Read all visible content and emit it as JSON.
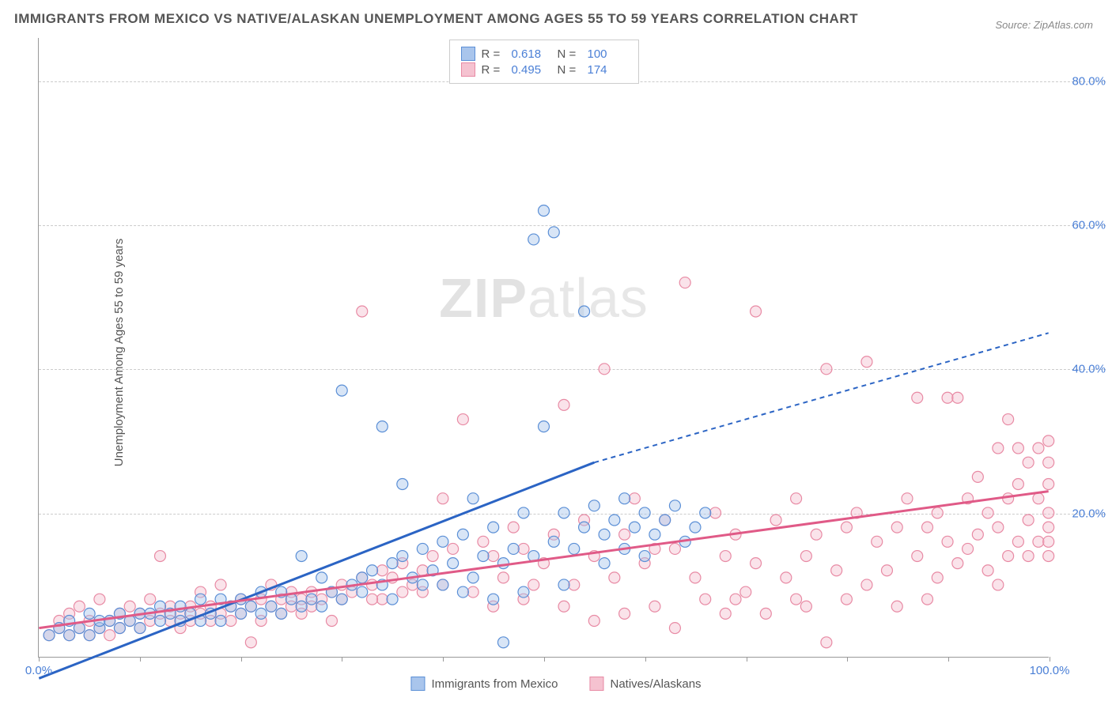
{
  "title": "IMMIGRANTS FROM MEXICO VS NATIVE/ALASKAN UNEMPLOYMENT AMONG AGES 55 TO 59 YEARS CORRELATION CHART",
  "source": "Source: ZipAtlas.com",
  "y_axis_label": "Unemployment Among Ages 55 to 59 years",
  "watermark": {
    "prefix": "ZIP",
    "suffix": "atlas"
  },
  "chart": {
    "type": "scatter",
    "background_color": "#ffffff",
    "grid_color": "#cccccc",
    "axis_color": "#999999",
    "xlim": [
      0,
      100
    ],
    "ylim": [
      0,
      86
    ],
    "xtick_labels": {
      "0": "0.0%",
      "100": "100.0%"
    },
    "xtick_positions": [
      0,
      10,
      20,
      30,
      40,
      50,
      60,
      70,
      80,
      90,
      100
    ],
    "ytick_labels": {
      "20": "20.0%",
      "40": "40.0%",
      "60": "60.0%",
      "80": "80.0%"
    },
    "ygrid_positions": [
      20,
      40,
      60,
      80
    ],
    "marker_radius": 7,
    "marker_opacity": 0.45,
    "marker_stroke_width": 1.2,
    "series": [
      {
        "name": "Immigrants from Mexico",
        "fill_color": "#a9c5ec",
        "stroke_color": "#5b8fd6",
        "line_color": "#2b64c4",
        "line_width": 3,
        "R": "0.618",
        "N": "100",
        "trend": {
          "x1": 0,
          "y1": -3,
          "x2": 55,
          "y2": 27,
          "x3": 100,
          "y3": 45
        },
        "points": [
          [
            1,
            3
          ],
          [
            2,
            4
          ],
          [
            3,
            3
          ],
          [
            3,
            5
          ],
          [
            4,
            4
          ],
          [
            5,
            3
          ],
          [
            5,
            6
          ],
          [
            6,
            4
          ],
          [
            6,
            5
          ],
          [
            7,
            5
          ],
          [
            8,
            4
          ],
          [
            8,
            6
          ],
          [
            9,
            5
          ],
          [
            10,
            4
          ],
          [
            10,
            6
          ],
          [
            11,
            6
          ],
          [
            12,
            5
          ],
          [
            12,
            7
          ],
          [
            13,
            6
          ],
          [
            14,
            5
          ],
          [
            14,
            7
          ],
          [
            15,
            6
          ],
          [
            16,
            5
          ],
          [
            16,
            8
          ],
          [
            17,
            6
          ],
          [
            18,
            5
          ],
          [
            18,
            8
          ],
          [
            19,
            7
          ],
          [
            20,
            6
          ],
          [
            20,
            8
          ],
          [
            21,
            7
          ],
          [
            22,
            6
          ],
          [
            22,
            9
          ],
          [
            23,
            7
          ],
          [
            24,
            6
          ],
          [
            24,
            9
          ],
          [
            25,
            8
          ],
          [
            26,
            7
          ],
          [
            26,
            14
          ],
          [
            27,
            8
          ],
          [
            28,
            7
          ],
          [
            28,
            11
          ],
          [
            29,
            9
          ],
          [
            30,
            8
          ],
          [
            30,
            37
          ],
          [
            31,
            10
          ],
          [
            32,
            11
          ],
          [
            32,
            9
          ],
          [
            33,
            12
          ],
          [
            34,
            32
          ],
          [
            34,
            10
          ],
          [
            35,
            13
          ],
          [
            35,
            8
          ],
          [
            36,
            14
          ],
          [
            36,
            24
          ],
          [
            37,
            11
          ],
          [
            38,
            15
          ],
          [
            38,
            10
          ],
          [
            39,
            12
          ],
          [
            40,
            16
          ],
          [
            40,
            10
          ],
          [
            41,
            13
          ],
          [
            42,
            17
          ],
          [
            42,
            9
          ],
          [
            43,
            22
          ],
          [
            43,
            11
          ],
          [
            44,
            14
          ],
          [
            45,
            18
          ],
          [
            45,
            8
          ],
          [
            46,
            13
          ],
          [
            46,
            2
          ],
          [
            47,
            15
          ],
          [
            48,
            20
          ],
          [
            48,
            9
          ],
          [
            49,
            14
          ],
          [
            49,
            58
          ],
          [
            50,
            62
          ],
          [
            50,
            32
          ],
          [
            51,
            16
          ],
          [
            51,
            59
          ],
          [
            52,
            20
          ],
          [
            52,
            10
          ],
          [
            53,
            15
          ],
          [
            54,
            18
          ],
          [
            54,
            48
          ],
          [
            55,
            21
          ],
          [
            56,
            13
          ],
          [
            56,
            17
          ],
          [
            57,
            19
          ],
          [
            58,
            15
          ],
          [
            58,
            22
          ],
          [
            59,
            18
          ],
          [
            60,
            20
          ],
          [
            60,
            14
          ],
          [
            61,
            17
          ],
          [
            62,
            19
          ],
          [
            63,
            21
          ],
          [
            64,
            16
          ],
          [
            65,
            18
          ],
          [
            66,
            20
          ]
        ]
      },
      {
        "name": "Natives/Alaskans",
        "fill_color": "#f5c2d0",
        "stroke_color": "#e88aa4",
        "line_color": "#e05a87",
        "line_width": 3,
        "R": "0.495",
        "N": "174",
        "trend": {
          "x1": 0,
          "y1": 4,
          "x2": 100,
          "y2": 23
        },
        "points": [
          [
            1,
            3
          ],
          [
            2,
            4
          ],
          [
            2,
            5
          ],
          [
            3,
            3
          ],
          [
            3,
            6
          ],
          [
            4,
            4
          ],
          [
            4,
            7
          ],
          [
            5,
            5
          ],
          [
            5,
            3
          ],
          [
            6,
            4
          ],
          [
            6,
            8
          ],
          [
            7,
            5
          ],
          [
            7,
            3
          ],
          [
            8,
            6
          ],
          [
            8,
            4
          ],
          [
            9,
            5
          ],
          [
            9,
            7
          ],
          [
            10,
            6
          ],
          [
            10,
            4
          ],
          [
            11,
            5
          ],
          [
            11,
            8
          ],
          [
            12,
            6
          ],
          [
            12,
            14
          ],
          [
            13,
            5
          ],
          [
            13,
            7
          ],
          [
            14,
            6
          ],
          [
            14,
            4
          ],
          [
            15,
            7
          ],
          [
            15,
            5
          ],
          [
            16,
            6
          ],
          [
            16,
            9
          ],
          [
            17,
            7
          ],
          [
            17,
            5
          ],
          [
            18,
            6
          ],
          [
            18,
            10
          ],
          [
            19,
            7
          ],
          [
            19,
            5
          ],
          [
            20,
            8
          ],
          [
            20,
            6
          ],
          [
            21,
            7
          ],
          [
            21,
            2
          ],
          [
            22,
            8
          ],
          [
            22,
            5
          ],
          [
            23,
            7
          ],
          [
            23,
            10
          ],
          [
            24,
            8
          ],
          [
            24,
            6
          ],
          [
            25,
            9
          ],
          [
            25,
            7
          ],
          [
            26,
            8
          ],
          [
            27,
            9
          ],
          [
            27,
            7
          ],
          [
            28,
            8
          ],
          [
            29,
            9
          ],
          [
            29,
            5
          ],
          [
            30,
            10
          ],
          [
            30,
            8
          ],
          [
            31,
            9
          ],
          [
            32,
            11
          ],
          [
            32,
            48
          ],
          [
            33,
            10
          ],
          [
            34,
            12
          ],
          [
            34,
            8
          ],
          [
            35,
            11
          ],
          [
            36,
            13
          ],
          [
            37,
            10
          ],
          [
            38,
            9
          ],
          [
            39,
            14
          ],
          [
            40,
            22
          ],
          [
            40,
            10
          ],
          [
            41,
            15
          ],
          [
            42,
            33
          ],
          [
            43,
            9
          ],
          [
            44,
            16
          ],
          [
            45,
            14
          ],
          [
            45,
            7
          ],
          [
            46,
            11
          ],
          [
            47,
            18
          ],
          [
            48,
            15
          ],
          [
            49,
            10
          ],
          [
            50,
            13
          ],
          [
            51,
            17
          ],
          [
            52,
            35
          ],
          [
            52,
            7
          ],
          [
            53,
            10
          ],
          [
            54,
            19
          ],
          [
            55,
            5
          ],
          [
            55,
            14
          ],
          [
            56,
            40
          ],
          [
            57,
            11
          ],
          [
            58,
            17
          ],
          [
            58,
            6
          ],
          [
            59,
            22
          ],
          [
            60,
            13
          ],
          [
            61,
            7
          ],
          [
            62,
            19
          ],
          [
            63,
            4
          ],
          [
            63,
            15
          ],
          [
            64,
            52
          ],
          [
            65,
            11
          ],
          [
            66,
            8
          ],
          [
            67,
            20
          ],
          [
            68,
            14
          ],
          [
            68,
            6
          ],
          [
            69,
            17
          ],
          [
            70,
            9
          ],
          [
            71,
            48
          ],
          [
            71,
            13
          ],
          [
            72,
            6
          ],
          [
            73,
            19
          ],
          [
            74,
            11
          ],
          [
            75,
            8
          ],
          [
            75,
            22
          ],
          [
            76,
            14
          ],
          [
            77,
            17
          ],
          [
            78,
            2
          ],
          [
            78,
            40
          ],
          [
            79,
            12
          ],
          [
            80,
            18
          ],
          [
            80,
            8
          ],
          [
            81,
            20
          ],
          [
            82,
            10
          ],
          [
            82,
            41
          ],
          [
            83,
            16
          ],
          [
            84,
            12
          ],
          [
            85,
            18
          ],
          [
            85,
            7
          ],
          [
            86,
            22
          ],
          [
            87,
            14
          ],
          [
            87,
            36
          ],
          [
            88,
            18
          ],
          [
            89,
            11
          ],
          [
            89,
            20
          ],
          [
            90,
            16
          ],
          [
            90,
            36
          ],
          [
            91,
            13
          ],
          [
            91,
            36
          ],
          [
            92,
            22
          ],
          [
            92,
            15
          ],
          [
            93,
            17
          ],
          [
            93,
            25
          ],
          [
            94,
            20
          ],
          [
            94,
            12
          ],
          [
            95,
            18
          ],
          [
            95,
            29
          ],
          [
            96,
            22
          ],
          [
            96,
            14
          ],
          [
            96,
            33
          ],
          [
            97,
            16
          ],
          [
            97,
            24
          ],
          [
            97,
            29
          ],
          [
            98,
            19
          ],
          [
            98,
            27
          ],
          [
            98,
            14
          ],
          [
            99,
            22
          ],
          [
            99,
            16
          ],
          [
            99,
            29
          ],
          [
            100,
            18
          ],
          [
            100,
            24
          ],
          [
            100,
            30
          ],
          [
            100,
            14
          ],
          [
            100,
            20
          ],
          [
            100,
            27
          ],
          [
            100,
            16
          ],
          [
            26,
            6
          ],
          [
            33,
            8
          ],
          [
            36,
            9
          ],
          [
            38,
            12
          ],
          [
            48,
            8
          ],
          [
            61,
            15
          ],
          [
            69,
            8
          ],
          [
            76,
            7
          ],
          [
            88,
            8
          ],
          [
            95,
            10
          ]
        ]
      }
    ],
    "legend_bottom": [
      {
        "label": "Immigrants from Mexico",
        "fill": "#a9c5ec",
        "stroke": "#5b8fd6"
      },
      {
        "label": "Natives/Alaskans",
        "fill": "#f5c2d0",
        "stroke": "#e88aa4"
      }
    ]
  }
}
